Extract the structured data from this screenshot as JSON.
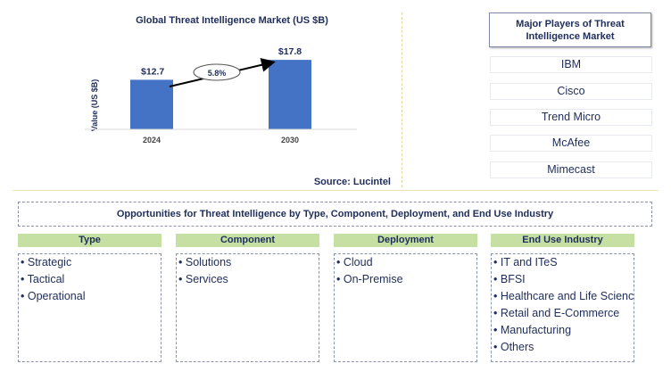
{
  "chart_data": {
    "type": "bar",
    "title": "Global Threat Intelligence Market (US $B)",
    "ylabel": "Value (US $B)",
    "categories": [
      "2024",
      "2030"
    ],
    "values": [
      12.7,
      17.8
    ],
    "data_labels": [
      "$12.7",
      "$17.8"
    ],
    "annotation": "5.8%",
    "bar_color": "#4472c4",
    "ylim": [
      0,
      24
    ],
    "grid": false,
    "source": "Source: Lucintel"
  },
  "major_players": {
    "title": "Major Players of Threat Intelligence Market",
    "items": [
      "IBM",
      "Cisco",
      "Trend Micro",
      "McAfee",
      "Mimecast"
    ]
  },
  "opportunities": {
    "title": "Opportunities for Threat Intelligence by Type, Component, Deployment, and End Use Industry",
    "header_color": "#c6e0a4",
    "segments": [
      {
        "label": "Type",
        "items": [
          "Strategic",
          "Tactical",
          "Operational"
        ]
      },
      {
        "label": "Component",
        "items": [
          "Solutions",
          "Services"
        ]
      },
      {
        "label": "Deployment",
        "items": [
          "Cloud",
          "On-Premise"
        ]
      },
      {
        "label": "End Use Industry",
        "items": [
          "IT and ITeS",
          "BFSI",
          "Healthcare and Life Sciences",
          "Retail and E-Commerce",
          "Manufacturing",
          "Others"
        ]
      }
    ]
  }
}
